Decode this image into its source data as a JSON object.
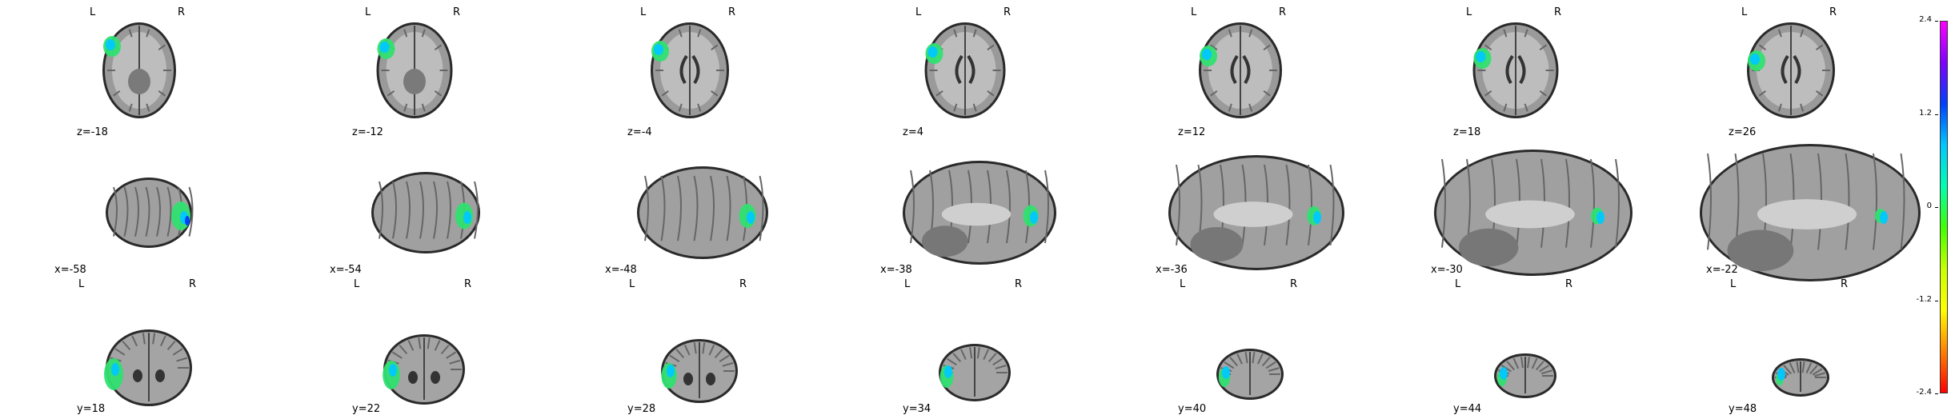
{
  "orientation_labels": {
    "left": "L",
    "right": "R"
  },
  "rows": [
    {
      "view": "axial",
      "panels": [
        {
          "coord": "z=-18"
        },
        {
          "coord": "z=-12"
        },
        {
          "coord": "z=-4"
        },
        {
          "coord": "z=4"
        },
        {
          "coord": "z=12"
        },
        {
          "coord": "z=18"
        },
        {
          "coord": "z=26"
        }
      ]
    },
    {
      "view": "sagittal",
      "panels": [
        {
          "coord": "x=-58"
        },
        {
          "coord": "x=-54"
        },
        {
          "coord": "x=-48"
        },
        {
          "coord": "x=-38"
        },
        {
          "coord": "x=-36"
        },
        {
          "coord": "x=-30"
        },
        {
          "coord": "x=-22"
        }
      ]
    },
    {
      "view": "coronal",
      "panels": [
        {
          "coord": "y=18"
        },
        {
          "coord": "y=22"
        },
        {
          "coord": "y=28"
        },
        {
          "coord": "y=34"
        },
        {
          "coord": "y=40"
        },
        {
          "coord": "y=44"
        },
        {
          "coord": "y=48"
        }
      ]
    }
  ],
  "colorbar": {
    "ticks": [
      "2.4",
      "1.2",
      "0",
      "-1.2",
      "-2.4"
    ],
    "colors": [
      "#ff00ff",
      "#8000ff",
      "#0040ff",
      "#00c8ff",
      "#00ffb0",
      "#40ff00",
      "#c8ff00",
      "#ffff00",
      "#ff8000",
      "#ff0000"
    ]
  }
}
